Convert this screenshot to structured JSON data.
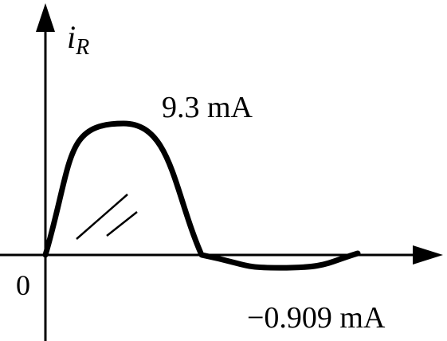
{
  "chart_data": {
    "type": "line",
    "y_axis_label": "i",
    "y_axis_label_subscript": "R",
    "origin_label": "0",
    "peak_label": "9.3 mA",
    "trough_label": "−0.909 mA",
    "series": [
      {
        "points": [
          [
            0,
            0
          ],
          [
            0.5,
            9.3
          ],
          [
            1.0,
            0
          ],
          [
            1.5,
            -0.909
          ],
          [
            2.0,
            0
          ]
        ]
      }
    ],
    "ylim": [
      -1.6,
      16
    ],
    "xlim": [
      0,
      2.6
    ],
    "grid": false
  }
}
